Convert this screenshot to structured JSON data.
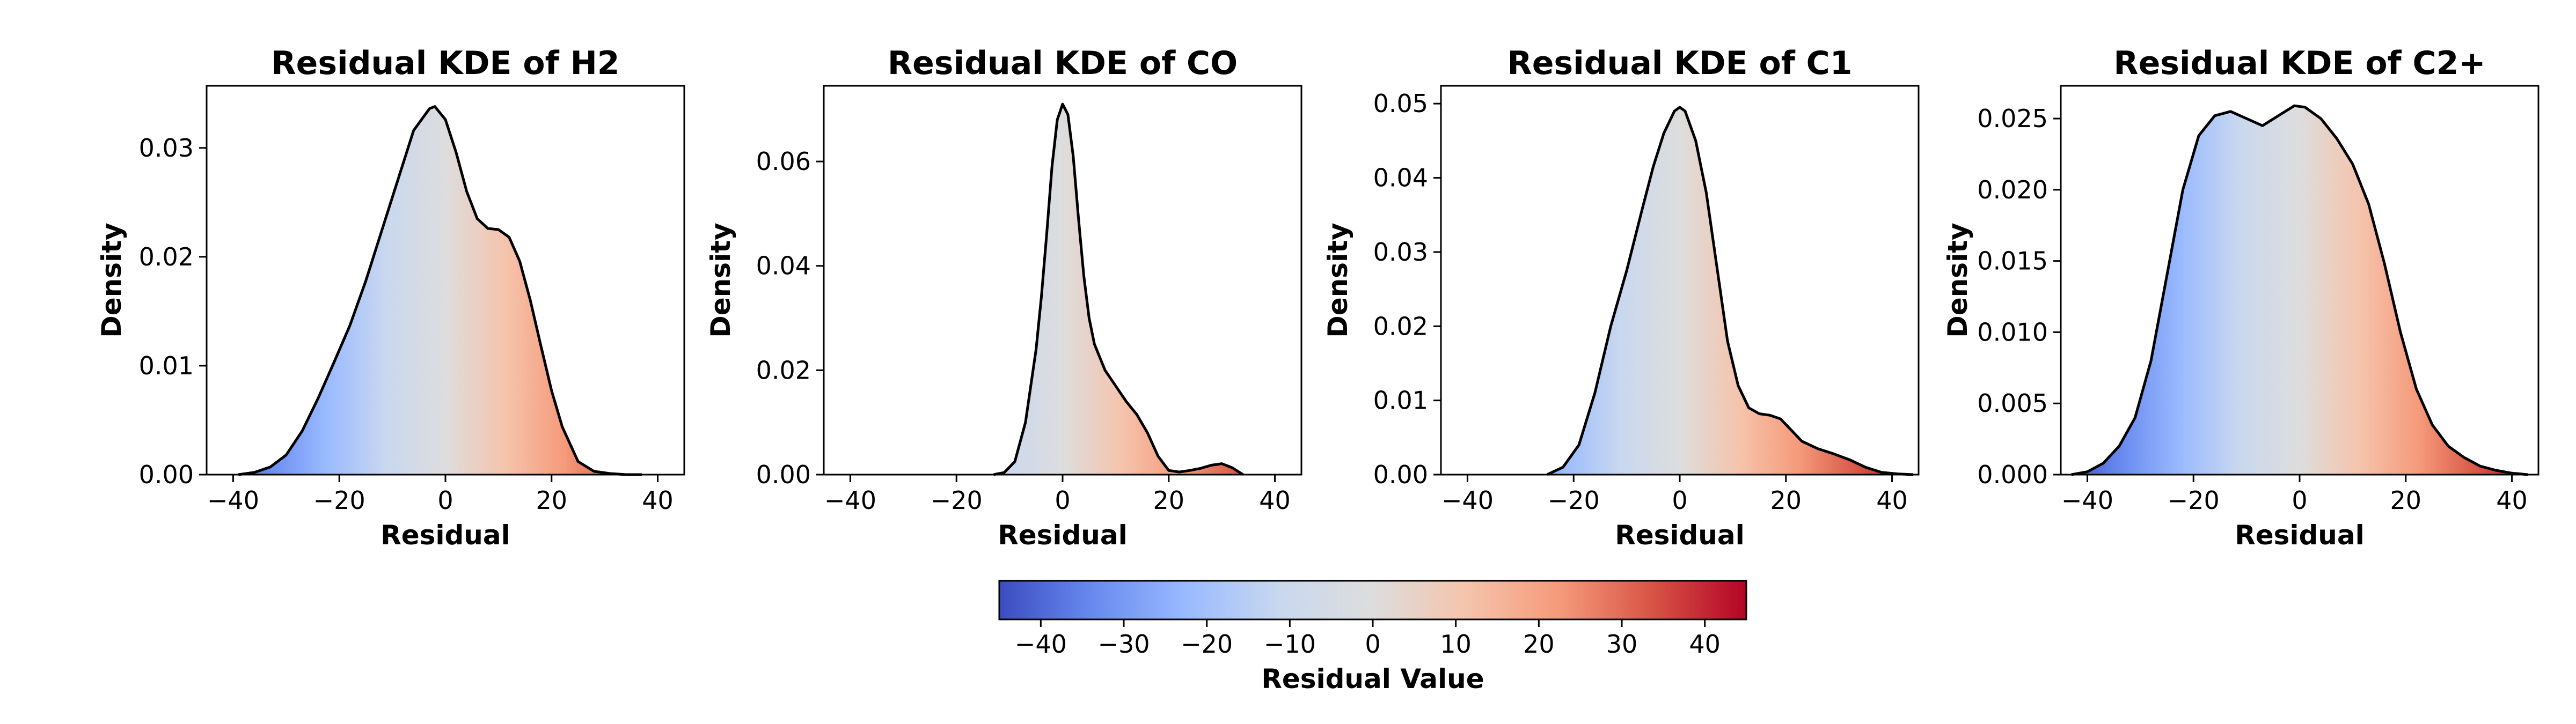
{
  "chart_data": {
    "type": "kde_grid",
    "panels": [
      {
        "title": "Residual KDE of H2",
        "xlabel": "Residual",
        "ylabel": "Density",
        "xlim": [
          -45,
          45
        ],
        "ylim": [
          0,
          0.0357
        ],
        "xticks": [
          -40,
          -20,
          0,
          20,
          40
        ],
        "yticks": [
          0.0,
          0.01,
          0.02,
          0.03
        ],
        "ytick_labels": [
          "0.00",
          "0.01",
          "0.02",
          "0.03"
        ],
        "series": [
          {
            "x": [
              -39,
              -36,
              -33,
              -30,
              -27,
              -24,
              -21,
              -18,
              -15,
              -12,
              -9,
              -6,
              -3,
              -2,
              0,
              2,
              4,
              6,
              8,
              10,
              12,
              14,
              16,
              18,
              20,
              22,
              25,
              28,
              31,
              34,
              37
            ],
            "y": [
              0.0,
              0.0002,
              0.0007,
              0.0018,
              0.004,
              0.007,
              0.0103,
              0.0137,
              0.0178,
              0.0224,
              0.027,
              0.0316,
              0.0336,
              0.0338,
              0.0326,
              0.0296,
              0.026,
              0.0235,
              0.0226,
              0.0225,
              0.0218,
              0.0196,
              0.016,
              0.0118,
              0.0077,
              0.0044,
              0.0012,
              0.0003,
              0.0001,
              0.0,
              0.0
            ]
          }
        ]
      },
      {
        "title": "Residual KDE of CO",
        "xlabel": "Residual",
        "ylabel": "Density",
        "xlim": [
          -45,
          45
        ],
        "ylim": [
          0,
          0.0745
        ],
        "xticks": [
          -40,
          -20,
          0,
          20,
          40
        ],
        "yticks": [
          0.0,
          0.02,
          0.04,
          0.06
        ],
        "ytick_labels": [
          "0.00",
          "0.02",
          "0.04",
          "0.06"
        ],
        "series": [
          {
            "x": [
              -13,
              -11,
              -9,
              -7,
              -5,
              -4,
              -3,
              -2,
              -1,
              0,
              1,
              2,
              3,
              4,
              5,
              6,
              8,
              10,
              12,
              14,
              16,
              18,
              20,
              22,
              24,
              26,
              28,
              30,
              32,
              34
            ],
            "y": [
              0.0,
              0.0004,
              0.0025,
              0.01,
              0.024,
              0.034,
              0.046,
              0.059,
              0.068,
              0.071,
              0.069,
              0.061,
              0.049,
              0.038,
              0.03,
              0.025,
              0.02,
              0.017,
              0.014,
              0.0115,
              0.008,
              0.0035,
              0.0008,
              0.0005,
              0.0008,
              0.0012,
              0.0018,
              0.0021,
              0.0013,
              0.0
            ]
          }
        ]
      },
      {
        "title": "Residual KDE of C1",
        "xlabel": "Residual",
        "ylabel": "Density",
        "xlim": [
          -45,
          45
        ],
        "ylim": [
          0,
          0.0524
        ],
        "xticks": [
          -40,
          -20,
          0,
          20,
          40
        ],
        "yticks": [
          0.0,
          0.01,
          0.02,
          0.03,
          0.04,
          0.05
        ],
        "ytick_labels": [
          "0.00",
          "0.01",
          "0.02",
          "0.03",
          "0.04",
          "0.05"
        ],
        "series": [
          {
            "x": [
              -25,
              -22,
              -19,
              -16,
              -13,
              -10,
              -7,
              -5,
              -3,
              -1,
              0,
              1,
              3,
              5,
              7,
              9,
              11,
              13,
              15,
              17,
              19,
              21,
              23,
              26,
              29,
              32,
              35,
              38,
              41,
              44
            ],
            "y": [
              0.0,
              0.001,
              0.004,
              0.011,
              0.02,
              0.0275,
              0.036,
              0.0415,
              0.046,
              0.049,
              0.0495,
              0.049,
              0.045,
              0.038,
              0.028,
              0.018,
              0.012,
              0.009,
              0.0082,
              0.008,
              0.0075,
              0.006,
              0.0045,
              0.0035,
              0.0028,
              0.002,
              0.001,
              0.0003,
              0.0001,
              0.0
            ]
          }
        ]
      },
      {
        "title": "Residual KDE of C2+",
        "xlabel": "Residual",
        "ylabel": "Density",
        "xlim": [
          -45,
          45
        ],
        "ylim": [
          0,
          0.0273
        ],
        "xticks": [
          -40,
          -20,
          0,
          20,
          40
        ],
        "yticks": [
          0.0,
          0.005,
          0.01,
          0.015,
          0.02,
          0.025
        ],
        "ytick_labels": [
          "0.000",
          "0.005",
          "0.010",
          "0.015",
          "0.020",
          "0.025"
        ],
        "series": [
          {
            "x": [
              -43,
              -40,
              -37,
              -34,
              -31,
              -28,
              -25,
              -22,
              -19,
              -16,
              -13,
              -10,
              -7,
              -4,
              -1,
              1,
              4,
              7,
              10,
              13,
              16,
              19,
              22,
              25,
              28,
              31,
              34,
              37,
              40,
              43
            ],
            "y": [
              0.0,
              0.0002,
              0.0008,
              0.002,
              0.004,
              0.008,
              0.014,
              0.02,
              0.0238,
              0.0252,
              0.0255,
              0.025,
              0.0245,
              0.0252,
              0.0259,
              0.0258,
              0.025,
              0.0236,
              0.0218,
              0.019,
              0.0148,
              0.01,
              0.006,
              0.0035,
              0.002,
              0.0012,
              0.0006,
              0.0003,
              0.0001,
              0.0
            ]
          }
        ]
      }
    ],
    "colorbar": {
      "label": "Residual Value",
      "range": [
        -45,
        45
      ],
      "ticks": [
        -40,
        -30,
        -20,
        -10,
        0,
        10,
        20,
        30,
        40
      ],
      "colormap": "coolwarm",
      "colors": [
        "#3b4cc0",
        "#688aef",
        "#99baff",
        "#c9d8ef",
        "#dddddd",
        "#f5c4ad",
        "#f59a7a",
        "#d75445",
        "#b40426"
      ]
    }
  }
}
